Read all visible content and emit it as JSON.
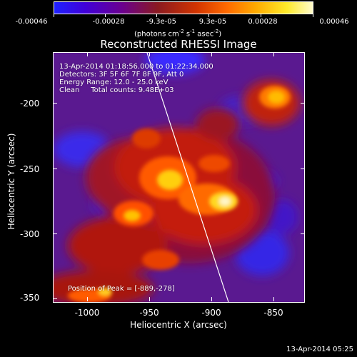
{
  "colorbar": {
    "tick_labels": [
      "-0.00046",
      "-0.00028",
      "-9.3e-05",
      "9.3e-05",
      "0.00028",
      "0.00046"
    ],
    "units_line1": "(photons cm",
    "units_line2": "-2",
    "units_line3": " s",
    "units_line4": "-1",
    "units_line5": " asec",
    "units_line6": "-2",
    "units_line7": ")"
  },
  "title": "Reconstructed RHESSI Image",
  "info": {
    "line1": "13-Apr-2014 01:18:56.000 to 01:22:34.000",
    "line2": "Detectors: 3F 5F 6F 7F 8F 9F, Att 0",
    "line3": "Energy Range: 12.0 - 25.0 keV",
    "line4": "Clean     Total counts: 9.48E+03",
    "peak": "Position of Peak = [-889,-278]"
  },
  "axes": {
    "xlabel": "Heliocentric X (arcsec)",
    "ylabel": "Heliocentric Y (arcsec)",
    "x_ticks": [
      "-1000",
      "-950",
      "-900",
      "-850"
    ],
    "y_ticks": [
      "-200",
      "-250",
      "-300",
      "-350"
    ]
  },
  "footer": {
    "timestamp": "13-Apr-2014 05:25"
  },
  "colors": {
    "background": "#000000",
    "limb_line": "#ffffff",
    "text": "#ffffff"
  }
}
